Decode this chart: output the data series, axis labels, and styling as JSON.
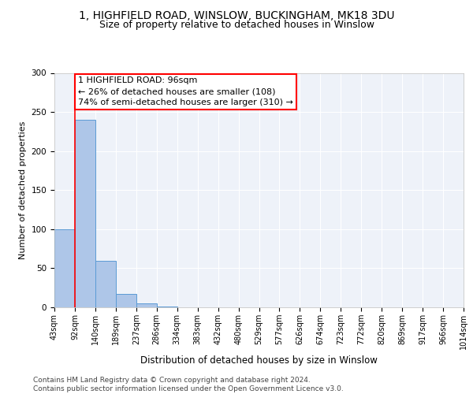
{
  "title1": "1, HIGHFIELD ROAD, WINSLOW, BUCKINGHAM, MK18 3DU",
  "title2": "Size of property relative to detached houses in Winslow",
  "xlabel": "Distribution of detached houses by size in Winslow",
  "ylabel": "Number of detached properties",
  "bin_labels": [
    "43sqm",
    "92sqm",
    "140sqm",
    "189sqm",
    "237sqm",
    "286sqm",
    "334sqm",
    "383sqm",
    "432sqm",
    "480sqm",
    "529sqm",
    "577sqm",
    "626sqm",
    "674sqm",
    "723sqm",
    "772sqm",
    "820sqm",
    "869sqm",
    "917sqm",
    "966sqm",
    "1014sqm"
  ],
  "bar_values": [
    100,
    240,
    60,
    17,
    5,
    1,
    0,
    0,
    0,
    0,
    0,
    0,
    0,
    0,
    0,
    0,
    0,
    0,
    0,
    0
  ],
  "bar_color": "#aec6e8",
  "bar_edge_color": "#5b9bd5",
  "vertical_line_x": 1,
  "annotation_text": "1 HIGHFIELD ROAD: 96sqm\n← 26% of detached houses are smaller (108)\n74% of semi-detached houses are larger (310) →",
  "annotation_box_color": "white",
  "annotation_box_edge_color": "red",
  "ylim": [
    0,
    300
  ],
  "yticks": [
    0,
    50,
    100,
    150,
    200,
    250,
    300
  ],
  "footer_text": "Contains HM Land Registry data © Crown copyright and database right 2024.\nContains public sector information licensed under the Open Government Licence v3.0.",
  "background_color": "#eef2f9",
  "grid_color": "white",
  "title_fontsize": 10,
  "subtitle_fontsize": 9,
  "tick_fontsize": 7,
  "ylabel_fontsize": 8,
  "xlabel_fontsize": 8.5,
  "footer_fontsize": 6.5,
  "annotation_fontsize": 8
}
